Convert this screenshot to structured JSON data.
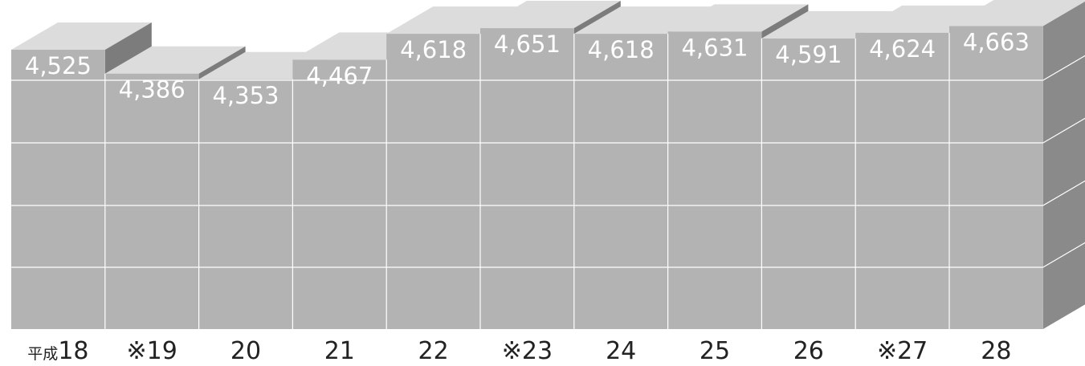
{
  "chart_data": {
    "type": "bar",
    "style": "3d-stacked-blocks",
    "categories": [
      "平成18",
      "※19",
      "20",
      "21",
      "22",
      "※23",
      "24",
      "25",
      "26",
      "※27",
      "28"
    ],
    "values": [
      4525,
      4386,
      4353,
      4467,
      4618,
      4651,
      4618,
      4631,
      4591,
      4624,
      4663
    ],
    "value_labels": [
      "4,525",
      "4,386",
      "4,353",
      "4,467",
      "4,618",
      "4,651",
      "4,618",
      "4,631",
      "4,591",
      "4,624",
      "4,663"
    ],
    "title": "",
    "xlabel": "",
    "ylabel": "",
    "grid": true,
    "legend": "none",
    "colors": {
      "front": "#b3b3b3",
      "top": "#dcdcdc",
      "side": "#8a8a8a",
      "side_dark": "#7c7c7c",
      "grid_line": "#ffffff",
      "label_text": "#ffffff",
      "category_text": "#222222"
    }
  }
}
